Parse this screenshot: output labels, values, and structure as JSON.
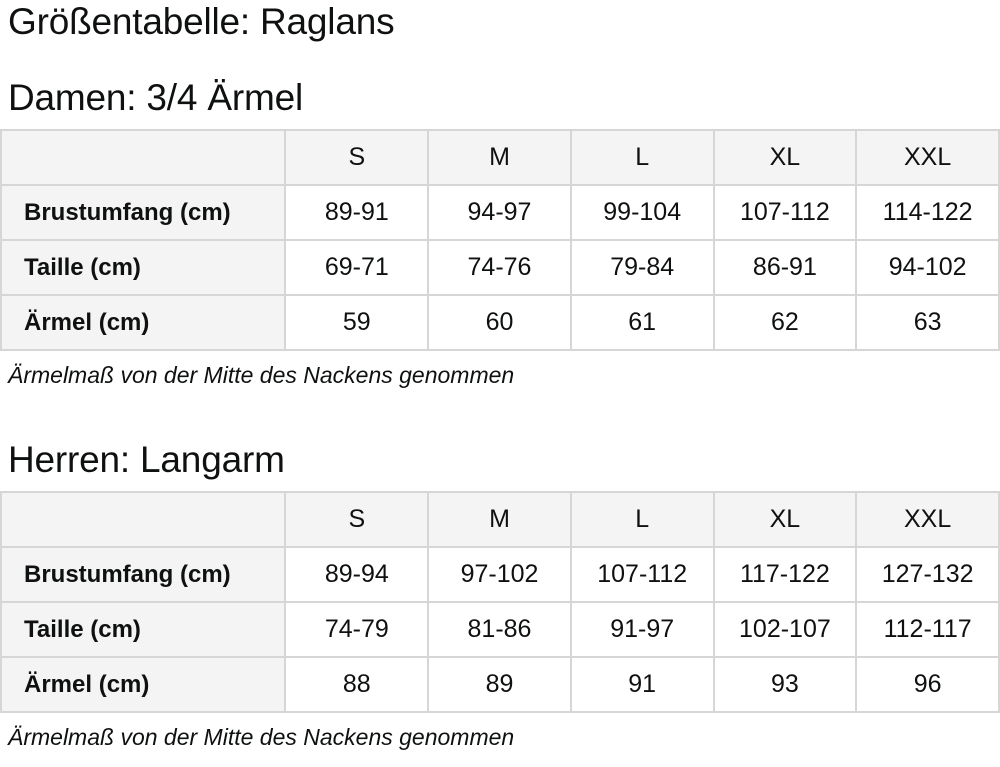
{
  "title": "Größentabelle: Raglans",
  "sections": [
    {
      "heading": "Damen: 3/4 Ärmel",
      "note": "Ärmelmaß von der Mitte des Nackens genommen",
      "table": {
        "columns": [
          "S",
          "M",
          "L",
          "XL",
          "XXL"
        ],
        "rows": [
          {
            "label": "Brustumfang (cm)",
            "values": [
              "89-91",
              "94-97",
              "99-104",
              "107-112",
              "114-122"
            ]
          },
          {
            "label": "Taille (cm)",
            "values": [
              "69-71",
              "74-76",
              "79-84",
              "86-91",
              "94-102"
            ]
          },
          {
            "label": "Ärmel (cm)",
            "values": [
              "59",
              "60",
              "61",
              "62",
              "63"
            ]
          }
        ]
      }
    },
    {
      "heading": "Herren: Langarm",
      "note": "Ärmelmaß von der Mitte des Nackens genommen",
      "table": {
        "columns": [
          "S",
          "M",
          "L",
          "XL",
          "XXL"
        ],
        "rows": [
          {
            "label": "Brustumfang (cm)",
            "values": [
              "89-94",
              "97-102",
              "107-112",
              "117-122",
              "127-132"
            ]
          },
          {
            "label": "Taille (cm)",
            "values": [
              "74-79",
              "81-86",
              "91-97",
              "102-107",
              "112-117"
            ]
          },
          {
            "label": "Ärmel (cm)",
            "values": [
              "88",
              "89",
              "91",
              "93",
              "96"
            ]
          }
        ]
      }
    }
  ],
  "chart_data": [
    {
      "type": "table",
      "title": "Damen: 3/4 Ärmel",
      "columns": [
        "",
        "S",
        "M",
        "L",
        "XL",
        "XXL"
      ],
      "rows": [
        [
          "Brustumfang (cm)",
          "89-91",
          "94-97",
          "99-104",
          "107-112",
          "114-122"
        ],
        [
          "Taille (cm)",
          "69-71",
          "74-76",
          "79-84",
          "86-91",
          "94-102"
        ],
        [
          "Ärmel (cm)",
          "59",
          "60",
          "61",
          "62",
          "63"
        ]
      ],
      "footnote": "Ärmelmaß von der Mitte des Nackens genommen"
    },
    {
      "type": "table",
      "title": "Herren: Langarm",
      "columns": [
        "",
        "S",
        "M",
        "L",
        "XL",
        "XXL"
      ],
      "rows": [
        [
          "Brustumfang (cm)",
          "89-94",
          "97-102",
          "107-112",
          "117-122",
          "127-132"
        ],
        [
          "Taille (cm)",
          "74-79",
          "81-86",
          "91-97",
          "102-107",
          "112-117"
        ],
        [
          "Ärmel (cm)",
          "88",
          "89",
          "91",
          "93",
          "96"
        ]
      ],
      "footnote": "Ärmelmaß von der Mitte des Nackens genommen"
    }
  ],
  "colors": {
    "table_header_bg": "#f4f4f4",
    "table_border": "#d6d6d6",
    "text": "#0f1111",
    "background": "#ffffff"
  }
}
